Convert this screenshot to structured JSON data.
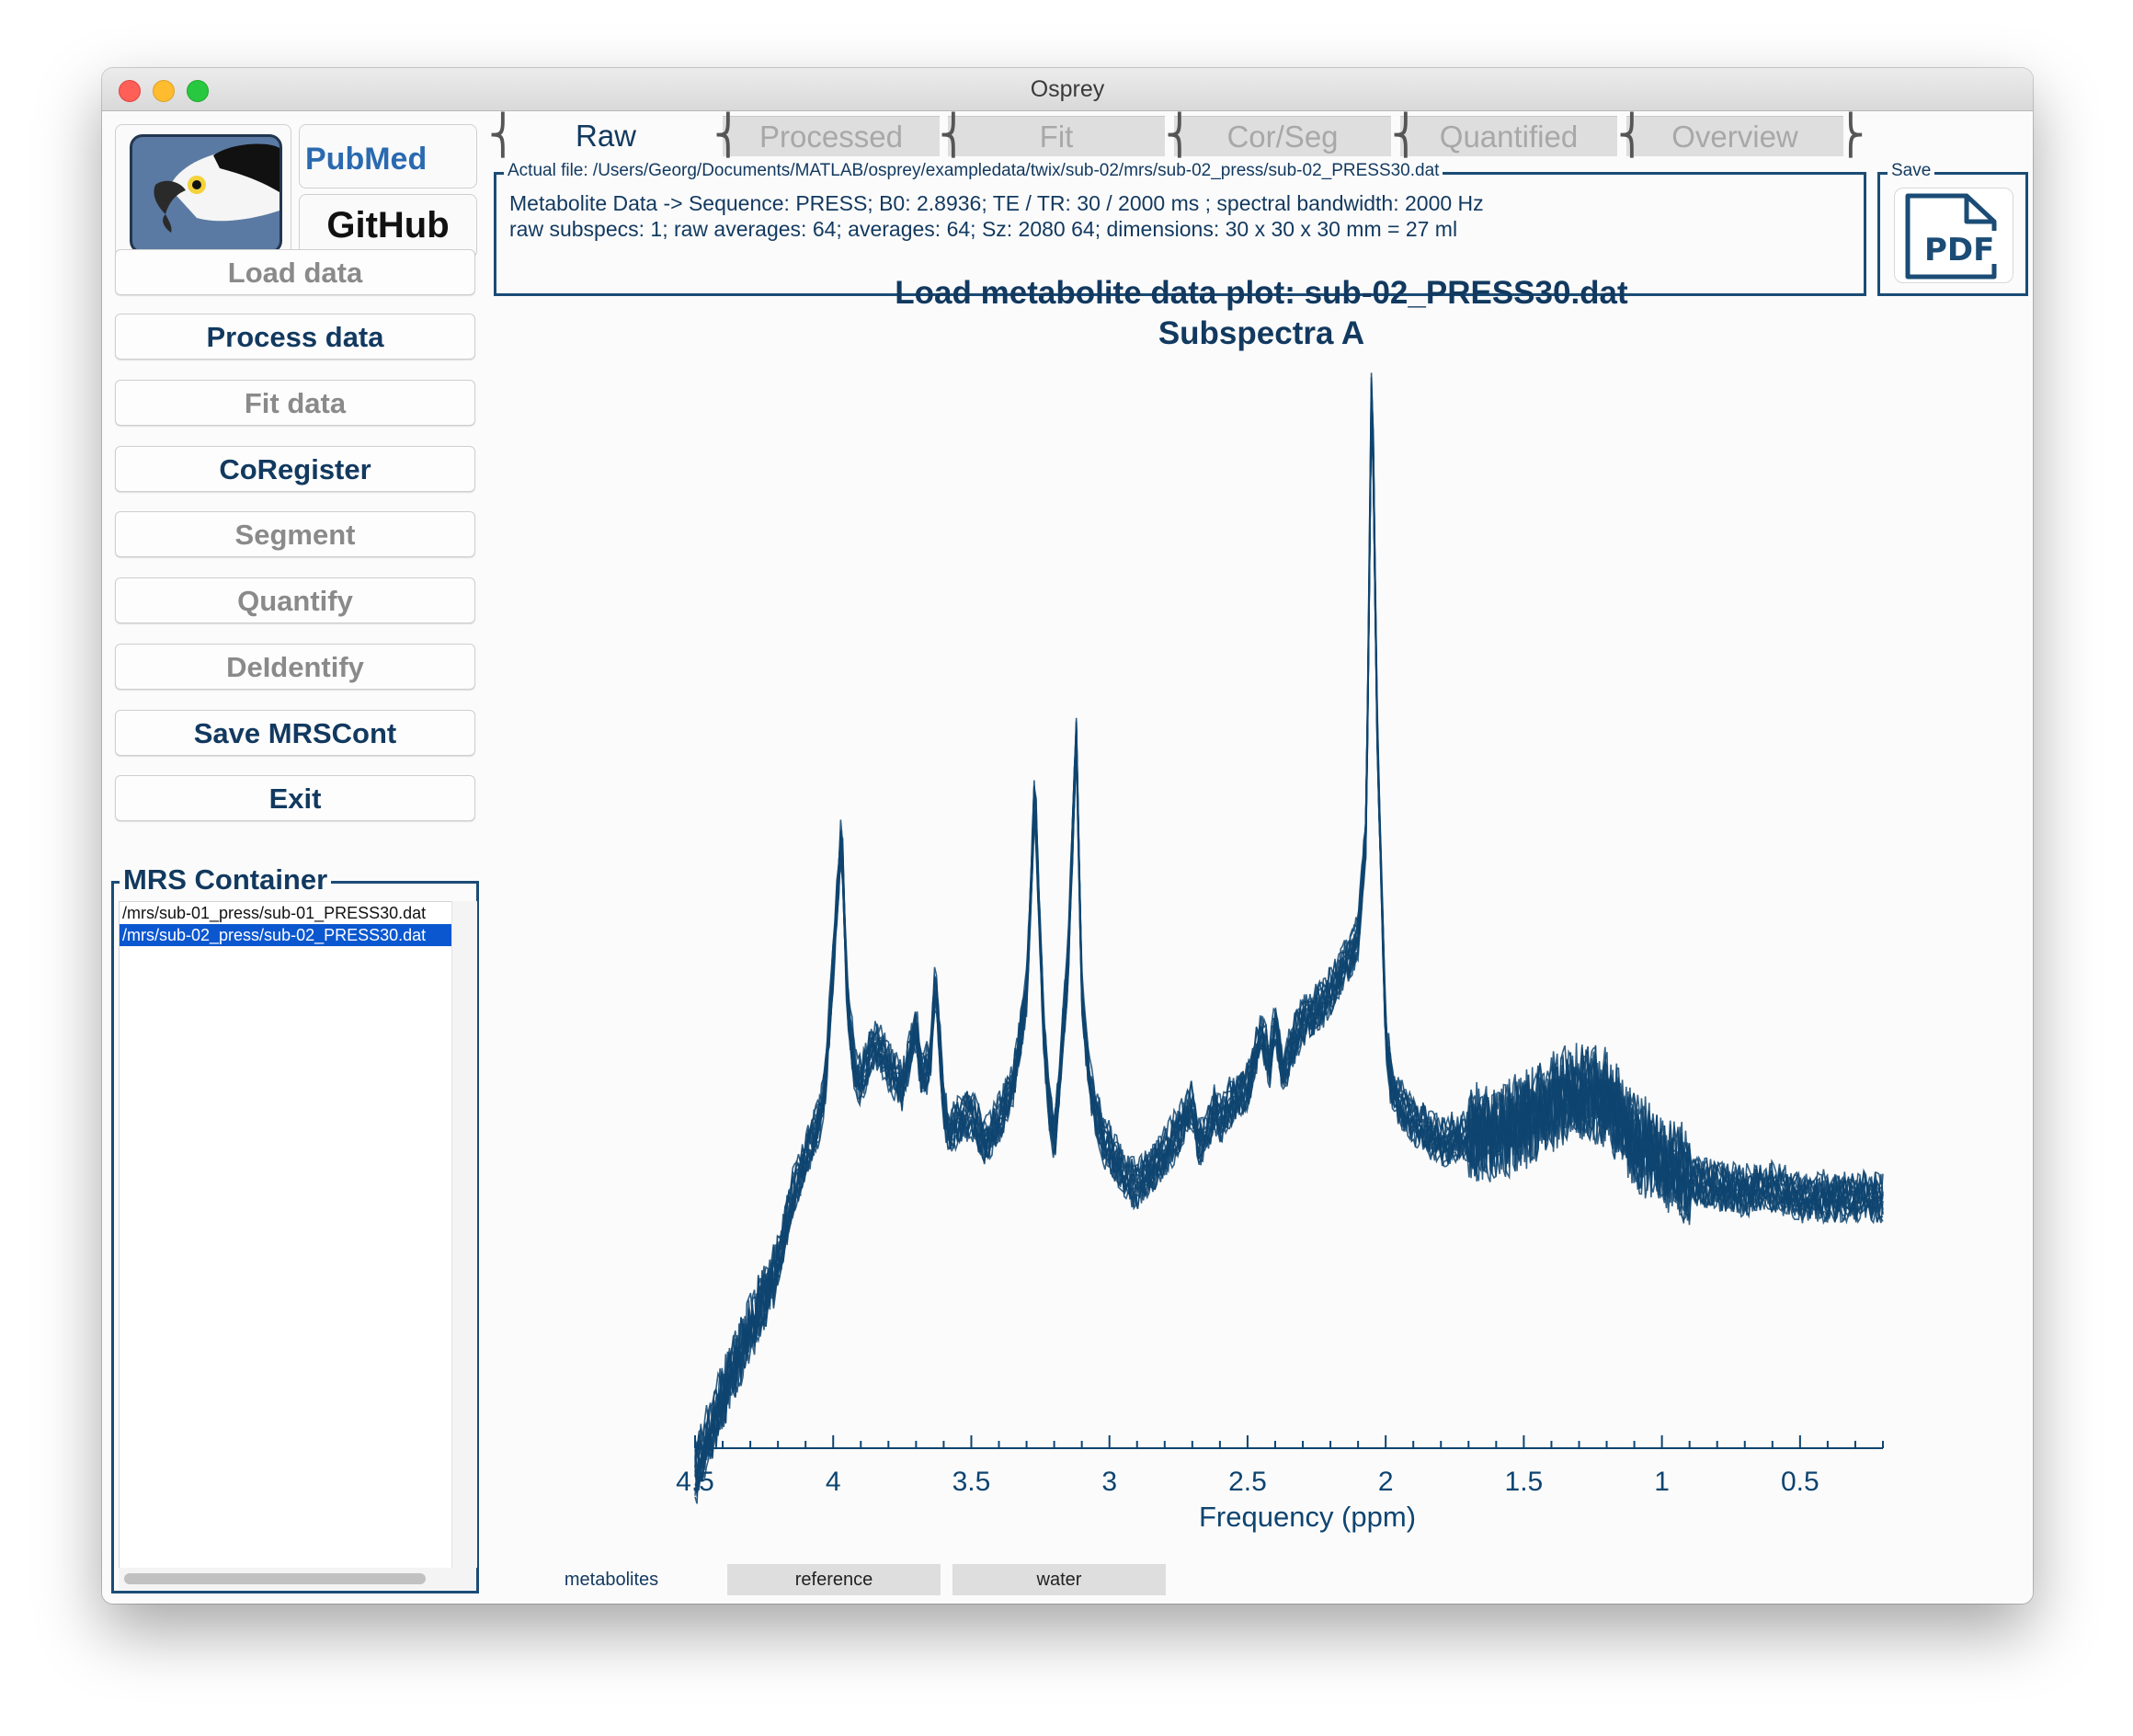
{
  "window": {
    "title": "Osprey"
  },
  "logos": {
    "pubmed": "PubMed",
    "github": "GitHub"
  },
  "left_buttons": [
    {
      "label": "Load data",
      "enabled": false
    },
    {
      "label": "Process data",
      "enabled": true
    },
    {
      "label": "Fit data",
      "enabled": false
    },
    {
      "label": "CoRegister",
      "enabled": true
    },
    {
      "label": "Segment",
      "enabled": false
    },
    {
      "label": "Quantify",
      "enabled": false
    },
    {
      "label": "DeIdentify",
      "enabled": false
    },
    {
      "label": "Save MRSCont",
      "enabled": true
    },
    {
      "label": "Exit",
      "enabled": true
    }
  ],
  "mrs_container": {
    "title": "MRS Container",
    "items": [
      "/mrs/sub-01_press/sub-01_PRESS30.dat",
      "/mrs/sub-02_press/sub-02_PRESS30.dat"
    ],
    "selected_index": 1
  },
  "top_tabs": {
    "items": [
      "Raw",
      "Processed",
      "Fit",
      "Cor/Seg",
      "Quantified",
      "Overview"
    ],
    "active": "Raw"
  },
  "info": {
    "legend": "Actual file: /Users/Georg/Documents/MATLAB/osprey/exampledata/twix/sub-02/mrs/sub-02_press/sub-02_PRESS30.dat",
    "line1": "Metabolite Data -> Sequence: PRESS; B0: 2.8936; TE / TR: 30 / 2000 ms ; spectral bandwidth: 2000 Hz",
    "line2": "raw subspecs: 1; raw averages: 64; averages: 64; Sz: 2080    64; dimensions: 30 x 30 x 30 mm = 27 ml"
  },
  "save": {
    "legend": "Save",
    "pdf_label": "PDF"
  },
  "plot": {
    "title": "Load metabolite data plot: sub-02_PRESS30.dat",
    "subtitle": "Subspectra A"
  },
  "chart_data": {
    "type": "line",
    "title": "Load metabolite data plot: sub-02_PRESS30.dat",
    "subtitle": "Subspectra A",
    "xlabel": "Frequency (ppm)",
    "ylabel": "",
    "x_reversed": true,
    "xlim": [
      4.5,
      0.2
    ],
    "x_ticks": [
      4.5,
      4,
      3.5,
      3,
      2.5,
      2,
      1.5,
      1,
      0.5
    ],
    "x_tick_labels": [
      "4.5",
      "4",
      "3.5",
      "3",
      "2.5",
      "2",
      "1.5",
      "1",
      "0.5"
    ],
    "y_axis_visible": false,
    "grid": false,
    "series_count": 64,
    "series_color": "#0e4470",
    "series": [
      {
        "x": [
          4.5,
          4.45,
          4.4,
          4.35,
          4.3,
          4.25,
          4.2,
          4.15,
          4.1,
          4.05,
          4.03,
          4.0,
          3.97,
          3.95,
          3.92,
          3.9,
          3.85,
          3.8,
          3.75,
          3.72,
          3.7,
          3.68,
          3.65,
          3.63,
          3.6,
          3.58,
          3.55,
          3.5,
          3.45,
          3.4,
          3.35,
          3.3,
          3.27,
          3.24,
          3.22,
          3.2,
          3.18,
          3.15,
          3.12,
          3.1,
          3.07,
          3.04,
          3.02,
          3.0,
          2.95,
          2.9,
          2.85,
          2.8,
          2.75,
          2.7,
          2.68,
          2.65,
          2.62,
          2.6,
          2.55,
          2.5,
          2.45,
          2.42,
          2.4,
          2.37,
          2.35,
          2.32,
          2.3,
          2.25,
          2.2,
          2.15,
          2.1,
          2.07,
          2.05,
          2.03,
          2.01,
          2.0,
          1.98,
          1.95,
          1.9,
          1.85,
          1.8,
          1.7,
          1.6,
          1.5,
          1.4,
          1.3,
          1.2,
          1.15,
          1.1,
          1.0,
          0.9,
          0.8,
          0.7,
          0.6,
          0.5,
          0.4,
          0.3,
          0.2
        ],
        "y": [
          -0.62,
          -0.55,
          -0.48,
          -0.42,
          -0.36,
          -0.3,
          -0.24,
          -0.12,
          -0.05,
          0.02,
          0.08,
          0.3,
          0.55,
          0.25,
          0.1,
          0.09,
          0.16,
          0.12,
          0.08,
          0.15,
          0.19,
          0.1,
          0.12,
          0.28,
          0.05,
          -0.01,
          0.02,
          0.03,
          -0.02,
          0.02,
          0.08,
          0.25,
          0.62,
          0.2,
          0.05,
          -0.02,
          0.1,
          0.3,
          0.72,
          0.25,
          0.08,
          0.02,
          -0.02,
          -0.03,
          -0.08,
          -0.1,
          -0.07,
          -0.04,
          0.0,
          0.05,
          -0.02,
          -0.01,
          0.04,
          0.02,
          0.06,
          0.08,
          0.18,
          0.12,
          0.2,
          0.1,
          0.14,
          0.18,
          0.2,
          0.22,
          0.25,
          0.3,
          0.35,
          0.55,
          1.4,
          0.7,
          0.35,
          0.18,
          0.08,
          0.05,
          0.02,
          0.0,
          -0.02,
          -0.01,
          0.0,
          0.02,
          0.05,
          0.07,
          0.06,
          0.02,
          -0.02,
          -0.05,
          -0.09,
          -0.1,
          -0.11,
          -0.1,
          -0.12,
          -0.12,
          -0.12,
          -0.12
        ]
      }
    ]
  },
  "bottom_tabs": {
    "items": [
      "metabolites",
      "reference",
      "water"
    ],
    "active": "metabolites"
  }
}
